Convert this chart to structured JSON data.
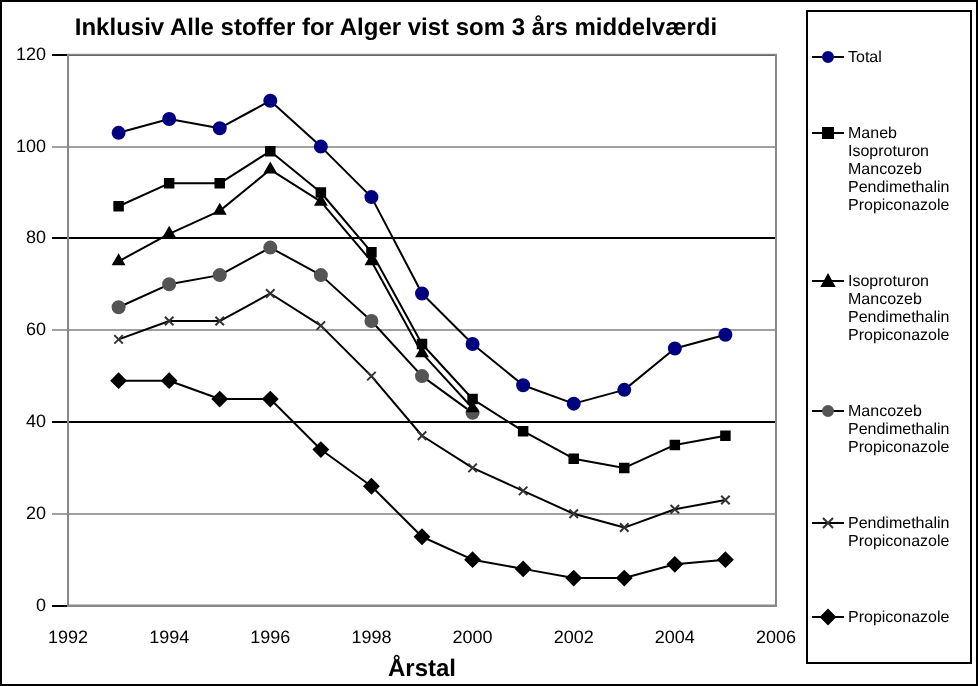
{
  "chart_data": {
    "type": "line",
    "title": "Inklusiv Alle stoffer for Alger vist som 3 års middelværdi",
    "xlabel": "Årstal",
    "x": [
      1993,
      1994,
      1995,
      1996,
      1997,
      1998,
      1999,
      2000,
      2001,
      2002,
      2003,
      2004,
      2005
    ],
    "xlim": [
      1992,
      2006
    ],
    "xticks": [
      1992,
      1994,
      1996,
      1998,
      2000,
      2002,
      2004,
      2006
    ],
    "ylim": [
      0,
      120
    ],
    "yticks": [
      0,
      20,
      40,
      60,
      80,
      100,
      120
    ],
    "grid": "y",
    "legend": "right",
    "series": [
      {
        "name": "Total",
        "color": "#000080",
        "marker": "circle",
        "values": [
          103,
          106,
          104,
          110,
          100,
          89,
          68,
          57,
          48,
          44,
          47,
          56,
          59
        ]
      },
      {
        "name": "Maneb Isoproturon Mancozeb Pendimethalin Propiconazole",
        "color": "#000000",
        "marker": "square",
        "values": [
          87,
          92,
          92,
          99,
          90,
          77,
          57,
          45,
          38,
          32,
          30,
          35,
          37
        ]
      },
      {
        "name": "Isoproturon Mancozeb Pendimethalin Propiconazole",
        "color": "#000000",
        "marker": "triangle",
        "values": [
          75,
          81,
          86,
          95,
          88,
          75,
          55,
          43,
          null,
          null,
          null,
          null,
          null
        ]
      },
      {
        "name": "Mancozeb Pendimethalin Propiconazole",
        "color": "#555555",
        "marker": "circle",
        "values": [
          65,
          70,
          72,
          78,
          72,
          62,
          50,
          42,
          null,
          null,
          null,
          null,
          null
        ]
      },
      {
        "name": "Pendimethalin Propiconazole",
        "color": "#333333",
        "marker": "cross",
        "values": [
          58,
          62,
          62,
          68,
          61,
          50,
          37,
          30,
          25,
          20,
          17,
          21,
          23
        ]
      },
      {
        "name": "Propiconazole",
        "color": "#000000",
        "marker": "diamond",
        "values": [
          49,
          49,
          45,
          45,
          34,
          26,
          15,
          10,
          8,
          6,
          6,
          9,
          10
        ]
      }
    ]
  }
}
